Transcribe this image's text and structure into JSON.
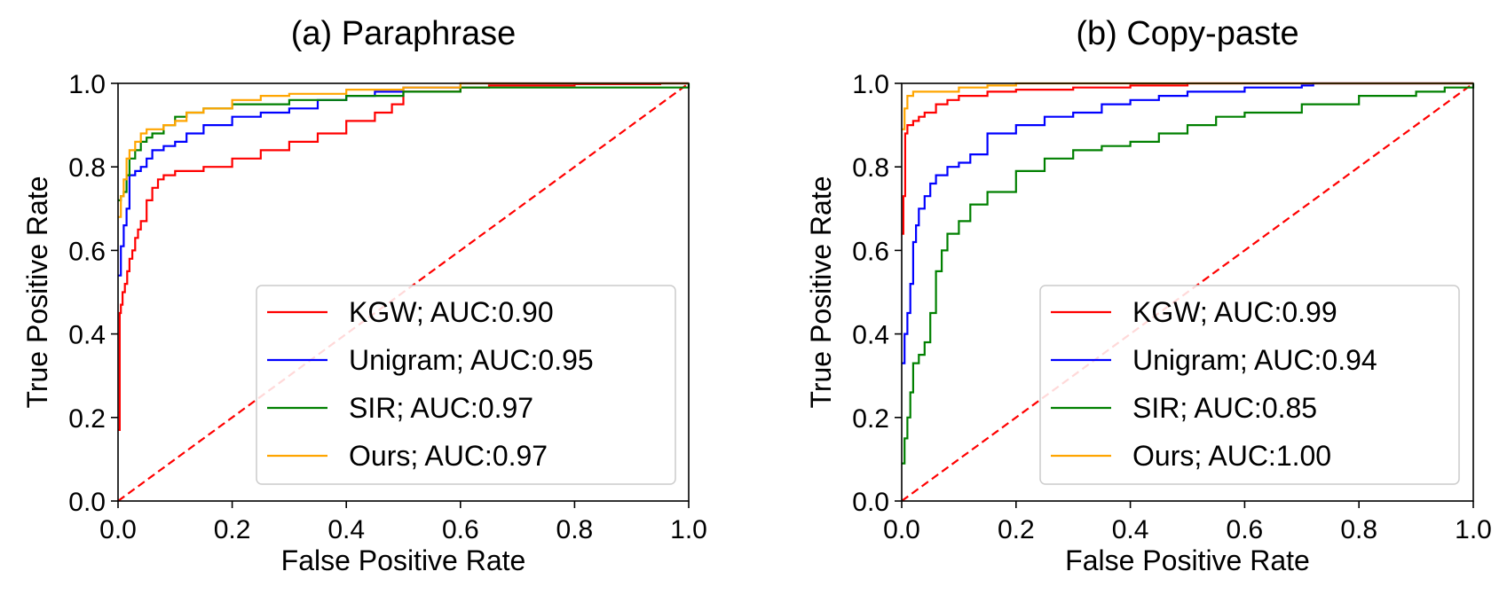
{
  "chart_data": [
    {
      "type": "line",
      "title": "(a) Paraphrase",
      "xlabel": "False Positive Rate",
      "ylabel": "True Positive Rate",
      "xlim": [
        0,
        1
      ],
      "ylim": [
        0,
        1
      ],
      "ticks": [
        "0.0",
        "0.2",
        "0.4",
        "0.6",
        "0.8",
        "1.0"
      ],
      "legend_position": "lower-right",
      "diagonal_color": "#ff0000",
      "series": [
        {
          "name": "KGW; AUC:0.90",
          "color": "#ff0000",
          "x": [
            0,
            0.003,
            0.005,
            0.008,
            0.012,
            0.016,
            0.02,
            0.025,
            0.03,
            0.035,
            0.04,
            0.05,
            0.06,
            0.07,
            0.08,
            0.1,
            0.12,
            0.15,
            0.2,
            0.25,
            0.3,
            0.35,
            0.4,
            0.45,
            0.48,
            0.5,
            0.6,
            0.65,
            0.8,
            0.95,
            1
          ],
          "y": [
            0.17,
            0.45,
            0.47,
            0.5,
            0.52,
            0.55,
            0.58,
            0.6,
            0.63,
            0.65,
            0.67,
            0.72,
            0.75,
            0.77,
            0.78,
            0.79,
            0.79,
            0.8,
            0.82,
            0.84,
            0.86,
            0.88,
            0.91,
            0.93,
            0.95,
            0.98,
            0.99,
            0.995,
            0.998,
            1,
            1
          ]
        },
        {
          "name": "Unigram; AUC:0.95",
          "color": "#0000ff",
          "x": [
            0,
            0.005,
            0.01,
            0.015,
            0.02,
            0.03,
            0.04,
            0.05,
            0.06,
            0.08,
            0.1,
            0.12,
            0.15,
            0.2,
            0.25,
            0.3,
            0.35,
            0.4,
            0.45,
            0.5,
            0.6,
            1
          ],
          "y": [
            0.54,
            0.61,
            0.66,
            0.7,
            0.78,
            0.79,
            0.8,
            0.82,
            0.84,
            0.85,
            0.86,
            0.88,
            0.9,
            0.92,
            0.93,
            0.94,
            0.96,
            0.97,
            0.98,
            0.99,
            1,
            1
          ]
        },
        {
          "name": "SIR; AUC:0.97",
          "color": "#008000",
          "x": [
            0,
            0.005,
            0.01,
            0.015,
            0.02,
            0.03,
            0.04,
            0.05,
            0.06,
            0.08,
            0.1,
            0.12,
            0.15,
            0.2,
            0.3,
            0.4,
            0.5,
            0.6,
            1
          ],
          "y": [
            0.72,
            0.73,
            0.74,
            0.78,
            0.82,
            0.84,
            0.86,
            0.87,
            0.88,
            0.9,
            0.92,
            0.93,
            0.94,
            0.95,
            0.96,
            0.97,
            0.98,
            0.99,
            1
          ]
        },
        {
          "name": "Ours; AUC:0.97",
          "color": "#ffa500",
          "x": [
            0,
            0.005,
            0.01,
            0.015,
            0.02,
            0.03,
            0.04,
            0.05,
            0.06,
            0.08,
            0.1,
            0.12,
            0.15,
            0.2,
            0.25,
            0.3,
            0.4,
            0.5,
            0.6,
            1
          ],
          "y": [
            0.68,
            0.73,
            0.77,
            0.82,
            0.84,
            0.86,
            0.88,
            0.89,
            0.89,
            0.9,
            0.91,
            0.93,
            0.94,
            0.96,
            0.97,
            0.975,
            0.985,
            0.99,
            1,
            1
          ]
        }
      ]
    },
    {
      "type": "line",
      "title": "(b) Copy-paste",
      "xlabel": "False Positive Rate",
      "ylabel": "True Positive Rate",
      "xlim": [
        0,
        1
      ],
      "ylim": [
        0,
        1
      ],
      "ticks": [
        "0.0",
        "0.2",
        "0.4",
        "0.6",
        "0.8",
        "1.0"
      ],
      "legend_position": "lower-right",
      "diagonal_color": "#ff0000",
      "series": [
        {
          "name": "KGW; AUC:0.99",
          "color": "#ff0000",
          "x": [
            0,
            0.003,
            0.006,
            0.01,
            0.02,
            0.03,
            0.04,
            0.06,
            0.08,
            0.1,
            0.15,
            0.2,
            0.3,
            0.4,
            0.5,
            0.7,
            1
          ],
          "y": [
            0.64,
            0.73,
            0.88,
            0.9,
            0.91,
            0.92,
            0.93,
            0.95,
            0.96,
            0.97,
            0.98,
            0.985,
            0.99,
            0.995,
            1,
            1,
            1
          ]
        },
        {
          "name": "Unigram; AUC:0.94",
          "color": "#0000ff",
          "x": [
            0,
            0.005,
            0.01,
            0.015,
            0.02,
            0.025,
            0.03,
            0.04,
            0.05,
            0.06,
            0.08,
            0.1,
            0.12,
            0.15,
            0.2,
            0.25,
            0.3,
            0.35,
            0.4,
            0.45,
            0.5,
            0.6,
            0.7,
            0.72,
            1
          ],
          "y": [
            0.33,
            0.4,
            0.45,
            0.52,
            0.62,
            0.66,
            0.7,
            0.73,
            0.76,
            0.78,
            0.8,
            0.81,
            0.83,
            0.88,
            0.9,
            0.92,
            0.93,
            0.95,
            0.96,
            0.97,
            0.98,
            0.99,
            0.995,
            1,
            1
          ]
        },
        {
          "name": "SIR; AUC:0.85",
          "color": "#008000",
          "x": [
            0,
            0.005,
            0.01,
            0.015,
            0.02,
            0.03,
            0.04,
            0.05,
            0.06,
            0.07,
            0.08,
            0.1,
            0.12,
            0.15,
            0.2,
            0.25,
            0.3,
            0.35,
            0.4,
            0.45,
            0.5,
            0.55,
            0.6,
            0.7,
            0.8,
            0.9,
            0.95,
            1
          ],
          "y": [
            0.09,
            0.15,
            0.2,
            0.26,
            0.33,
            0.35,
            0.38,
            0.45,
            0.55,
            0.6,
            0.64,
            0.67,
            0.71,
            0.74,
            0.79,
            0.82,
            0.84,
            0.85,
            0.86,
            0.88,
            0.9,
            0.92,
            0.93,
            0.95,
            0.97,
            0.98,
            0.99,
            1
          ]
        },
        {
          "name": "Ours; AUC:1.00",
          "color": "#ffa500",
          "x": [
            0,
            0.005,
            0.01,
            0.02,
            0.05,
            0.1,
            0.15,
            0.2,
            1
          ],
          "y": [
            0.89,
            0.94,
            0.97,
            0.98,
            0.98,
            0.99,
            0.995,
            1,
            1
          ]
        }
      ]
    }
  ]
}
